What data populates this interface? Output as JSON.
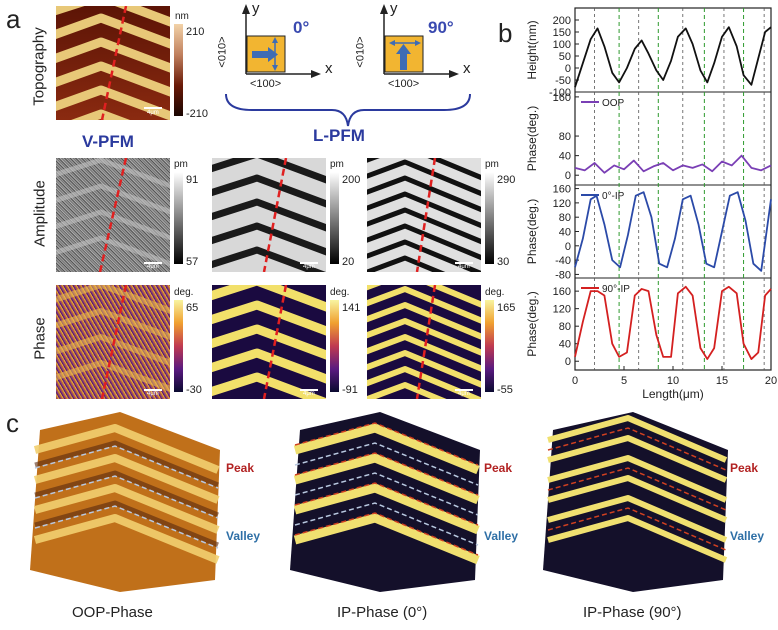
{
  "panels": {
    "a": "a",
    "b": "b",
    "c": "c"
  },
  "rows": {
    "topography": "Topography",
    "amplitude": "Amplitude",
    "phase": "Phase"
  },
  "headers": {
    "vpfm": "V-PFM",
    "lpfm": "L-PFM"
  },
  "scale_bar": "4μm",
  "topo_cbar": {
    "unit": "nm",
    "max": "210",
    "min": "-210"
  },
  "amp_cbars": [
    {
      "unit": "pm",
      "max": "91",
      "min": "57"
    },
    {
      "unit": "pm",
      "max": "200",
      "min": "20"
    },
    {
      "unit": "pm",
      "max": "290",
      "min": "30"
    }
  ],
  "phase_cbars": [
    {
      "unit": "deg.",
      "max": "65",
      "min": "-30"
    },
    {
      "unit": "deg.",
      "max": "141",
      "min": "-91"
    },
    {
      "unit": "deg.",
      "max": "165",
      "min": "-55"
    }
  ],
  "schematics": [
    {
      "angle": "0°",
      "y": "y",
      "x": "x",
      "left": "<010>",
      "bottom": "<100>"
    },
    {
      "angle": "90°",
      "y": "y",
      "x": "x",
      "left": "<010>",
      "bottom": "<100>"
    }
  ],
  "c_labels": {
    "peak": "Peak",
    "valley": "Valley",
    "captions": [
      "OOP-Phase",
      "IP-Phase (0°)",
      "IP-Phase (90°)"
    ]
  },
  "colors": {
    "black": "#111111",
    "purple": "#7a3fb5",
    "blue": "#2b4aa8",
    "red": "#d42020",
    "green_dash": "#2e9a2e",
    "gray_dash": "#555555"
  },
  "chart_data": {
    "type": "line",
    "xlabel": "Length(μm)",
    "xlim": [
      0,
      20
    ],
    "xticks": [
      "0",
      "5",
      "10",
      "15",
      "20"
    ],
    "vlines": {
      "green": [
        4.5,
        8.5,
        13.2,
        17.2
      ],
      "gray": [
        2.0,
        6.5,
        11.0,
        15.2,
        19.3
      ]
    },
    "subplots": [
      {
        "ylabel": "Height(nm)",
        "ylim": [
          -100,
          250
        ],
        "yticks": [
          "200",
          "150",
          "100",
          "50",
          "0",
          "-50",
          "-100"
        ],
        "legend": "",
        "series": {
          "name": "",
          "color": "#111111",
          "x": [
            0,
            0.8,
            1.6,
            2.3,
            3.0,
            3.8,
            4.5,
            5.3,
            6.1,
            6.8,
            7.5,
            8.3,
            9.0,
            9.8,
            10.5,
            11.3,
            12.0,
            12.8,
            13.5,
            14.2,
            15.0,
            15.7,
            16.5,
            17.2,
            18.0,
            18.7,
            19.4,
            20
          ],
          "y": [
            -80,
            20,
            120,
            165,
            90,
            -20,
            -60,
            0,
            80,
            115,
            60,
            -10,
            -50,
            30,
            130,
            165,
            100,
            -10,
            -60,
            20,
            130,
            170,
            90,
            -30,
            -70,
            40,
            150,
            170
          ]
        }
      },
      {
        "ylabel": "Phase(deg.)",
        "ylim": [
          -20,
          170
        ],
        "yticks": [
          "160",
          "80",
          "40",
          "0"
        ],
        "legend": "OOP",
        "series": {
          "name": "OOP",
          "color": "#7a3fb5",
          "x": [
            0,
            1,
            2,
            3,
            4,
            5,
            6,
            7,
            8,
            9,
            10,
            11,
            12,
            13,
            14,
            15,
            16,
            17,
            18,
            19,
            20
          ],
          "y": [
            15,
            10,
            25,
            5,
            20,
            12,
            30,
            8,
            18,
            25,
            10,
            20,
            15,
            22,
            8,
            28,
            20,
            40,
            15,
            10,
            20
          ]
        }
      },
      {
        "ylabel": "Phase(deg.)",
        "ylim": [
          -90,
          170
        ],
        "yticks": [
          "160",
          "120",
          "80",
          "40",
          "0",
          "-40",
          "-80"
        ],
        "legend": "0°-IP",
        "series": {
          "name": "0°-IP",
          "color": "#2b4aa8",
          "x": [
            0,
            0.8,
            1.6,
            2.2,
            3.0,
            3.8,
            4.6,
            5.4,
            6.2,
            7.0,
            7.8,
            8.6,
            9.4,
            10.2,
            11.0,
            11.8,
            12.6,
            13.4,
            14.2,
            15.0,
            15.8,
            16.6,
            17.4,
            18.2,
            19.0,
            20
          ],
          "y": [
            -60,
            20,
            130,
            140,
            60,
            -40,
            -60,
            30,
            140,
            150,
            80,
            -50,
            -60,
            20,
            130,
            140,
            60,
            -50,
            -60,
            40,
            140,
            150,
            70,
            -50,
            -70,
            130
          ]
        }
      },
      {
        "ylabel": "Phase(deg.)",
        "ylim": [
          -20,
          190
        ],
        "yticks": [
          "160",
          "120",
          "80",
          "40",
          "0"
        ],
        "legend": "90°-IP",
        "series": {
          "name": "90°-IP",
          "color": "#d42020",
          "x": [
            0,
            0.8,
            1.6,
            2.3,
            3.0,
            3.8,
            4.5,
            5.3,
            6.1,
            6.8,
            7.5,
            8.3,
            9.0,
            9.8,
            10.5,
            11.3,
            12.0,
            12.8,
            13.5,
            14.2,
            15.0,
            15.7,
            16.5,
            17.2,
            18.0,
            18.7,
            19.4,
            20
          ],
          "y": [
            10,
            90,
            160,
            160,
            150,
            40,
            10,
            20,
            150,
            165,
            160,
            60,
            10,
            10,
            155,
            170,
            150,
            30,
            5,
            30,
            160,
            170,
            155,
            40,
            5,
            20,
            150,
            165
          ]
        }
      }
    ]
  }
}
